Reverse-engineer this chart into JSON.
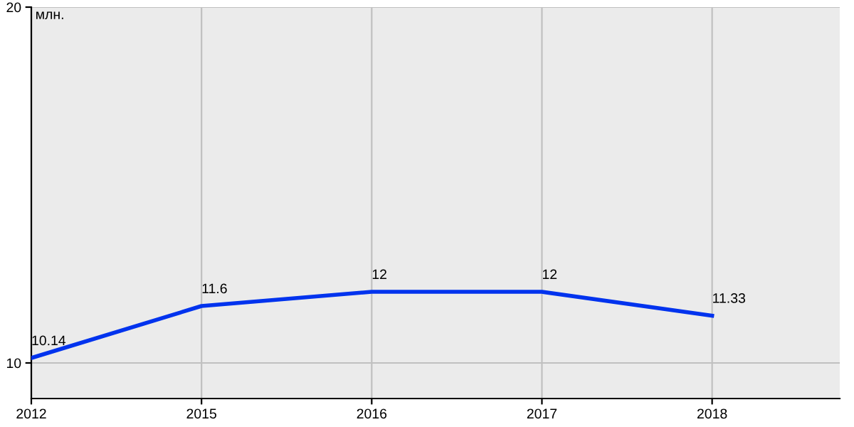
{
  "chart_data": {
    "type": "line",
    "ylabel": "млн.",
    "categories": [
      "2012",
      "2015",
      "2016",
      "2017",
      "2018"
    ],
    "series": [
      {
        "color": "#0033ee",
        "values": [
          10.14,
          11.6,
          12,
          12,
          11.33
        ]
      }
    ],
    "ylim": [
      9,
      20
    ],
    "yticks": [
      10,
      20
    ],
    "grid": true,
    "data_labels": true,
    "marker": "none",
    "line_style": "solid"
  }
}
